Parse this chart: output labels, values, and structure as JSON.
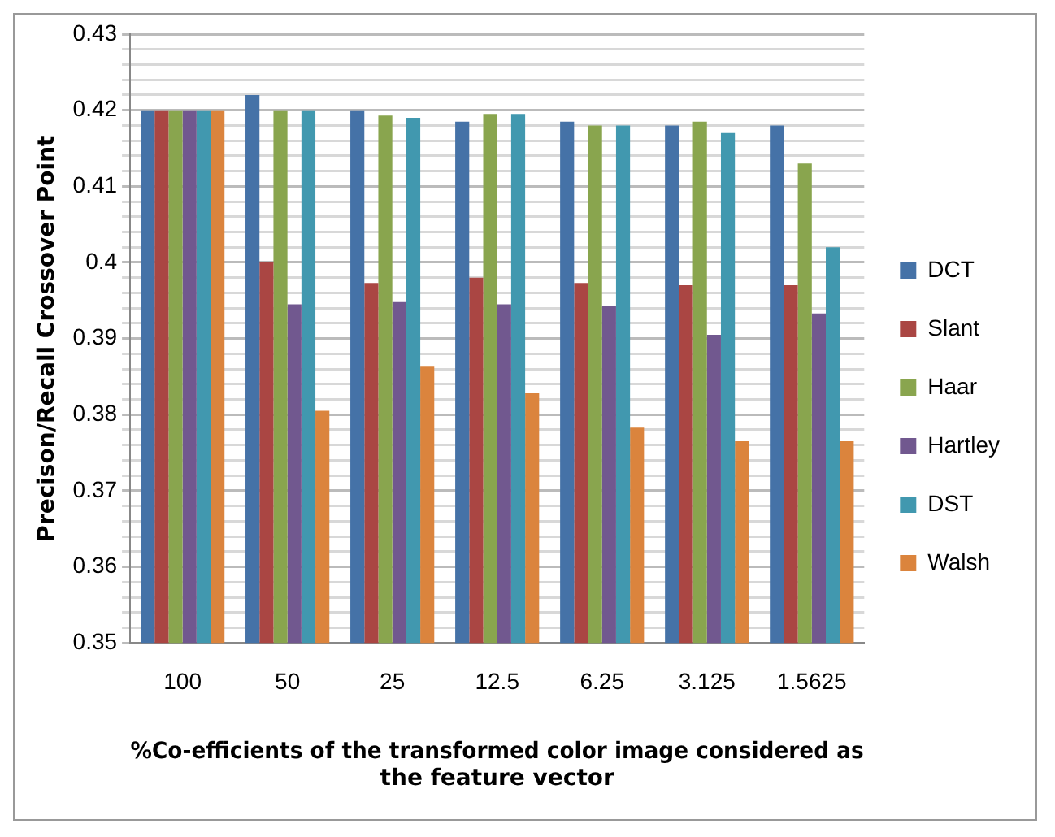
{
  "chart_data": {
    "type": "bar",
    "ylabel": "Precison/Recall Crossover Point",
    "xlabel": "%Co-efficients of the transformed color image considered as the feature vector",
    "categories": [
      "100",
      "50",
      "25",
      "12.5",
      "6.25",
      "3.125",
      "1.5625"
    ],
    "series": [
      {
        "name": "DCT",
        "color": "#4572a7",
        "values": [
          0.42,
          0.422,
          0.42,
          0.4185,
          0.4185,
          0.418,
          0.418
        ]
      },
      {
        "name": "Slant",
        "color": "#aa4643",
        "values": [
          0.42,
          0.4,
          0.3973,
          0.398,
          0.3973,
          0.397,
          0.397
        ]
      },
      {
        "name": "Haar",
        "color": "#89a54e",
        "values": [
          0.42,
          0.42,
          0.4193,
          0.4195,
          0.418,
          0.4185,
          0.413
        ]
      },
      {
        "name": "Hartley",
        "color": "#71588f",
        "values": [
          0.42,
          0.3945,
          0.3948,
          0.3945,
          0.3943,
          0.3905,
          0.3933
        ]
      },
      {
        "name": "DST",
        "color": "#4198af",
        "values": [
          0.42,
          0.42,
          0.419,
          0.4195,
          0.418,
          0.417,
          0.402
        ]
      },
      {
        "name": "Walsh",
        "color": "#db843d",
        "values": [
          0.42,
          0.3805,
          0.3863,
          0.3828,
          0.3783,
          0.3765,
          0.3765
        ]
      }
    ],
    "ylim": [
      0.35,
      0.43
    ],
    "yticks": [
      0.35,
      {
        "value": 0.352,
        "label": null
      },
      {
        "value": 0.354,
        "label": null
      },
      {
        "value": 0.356,
        "label": null
      },
      {
        "value": 0.358,
        "label": null
      },
      0.36,
      {
        "value": 0.362,
        "label": null
      },
      {
        "value": 0.364,
        "label": null
      },
      {
        "value": 0.366,
        "label": null
      },
      {
        "value": 0.368,
        "label": null
      },
      0.37,
      {
        "value": 0.372,
        "label": null
      },
      {
        "value": 0.374,
        "label": null
      },
      {
        "value": 0.376,
        "label": null
      },
      {
        "value": 0.378,
        "label": null
      },
      0.38,
      {
        "value": 0.382,
        "label": null
      },
      {
        "value": 0.384,
        "label": null
      },
      {
        "value": 0.386,
        "label": null
      },
      {
        "value": 0.388,
        "label": null
      },
      0.39,
      {
        "value": 0.392,
        "label": null
      },
      {
        "value": 0.394,
        "label": null
      },
      {
        "value": 0.396,
        "label": null
      },
      {
        "value": 0.398,
        "label": null
      },
      0.4,
      {
        "value": 0.402,
        "label": null
      },
      {
        "value": 0.404,
        "label": null
      },
      {
        "value": 0.406,
        "label": null
      },
      {
        "value": 0.408,
        "label": null
      },
      0.41,
      {
        "value": 0.412,
        "label": null
      },
      {
        "value": 0.414,
        "label": null
      },
      {
        "value": 0.416,
        "label": null
      },
      {
        "value": 0.418,
        "label": null
      },
      0.42,
      {
        "value": 0.422,
        "label": null
      },
      {
        "value": 0.424,
        "label": null
      },
      {
        "value": 0.426,
        "label": null
      },
      {
        "value": 0.428,
        "label": null
      },
      0.43
    ],
    "grid": "y",
    "legend": "right"
  }
}
